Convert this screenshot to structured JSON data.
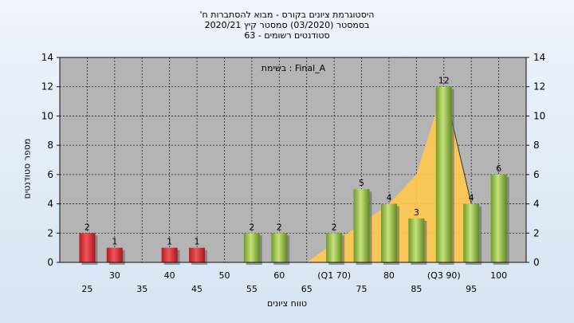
{
  "title_lines": [
    "'היסטוגרמת ציונים בקורס - מבוא להסתברות ח",
    "בסמסטר  (03/2020)  סמסטר קיץ  2020/21",
    "סטודנטים רשומים - 63"
  ],
  "colors": {
    "plot_background": "#b4b4b4",
    "red_bar": "#d9363b",
    "green_bar": "#9fc84a",
    "area_fill": "#ffc94d"
  },
  "chart_data": {
    "type": "bar",
    "annotation": "בשימת : Final_A",
    "xlabel": "טווח ציונים",
    "ylabel": "מספר סטודנטים",
    "ylim": [
      0,
      14
    ],
    "yticks": [
      0,
      2,
      4,
      6,
      8,
      10,
      12,
      14
    ],
    "grid": true,
    "xlim": [
      20,
      105
    ],
    "x_tick_labels_row1": [
      {
        "x": 30,
        "label": "30"
      },
      {
        "x": 40,
        "label": "40"
      },
      {
        "x": 50,
        "label": "50"
      },
      {
        "x": 60,
        "label": "60"
      },
      {
        "x": 70,
        "label": "(Q1 70)"
      },
      {
        "x": 80,
        "label": "80"
      },
      {
        "x": 90,
        "label": "(Q3 90)"
      },
      {
        "x": 100,
        "label": "100"
      }
    ],
    "x_tick_labels_row2": [
      {
        "x": 25,
        "label": "25"
      },
      {
        "x": 35,
        "label": "35"
      },
      {
        "x": 45,
        "label": "45"
      },
      {
        "x": 55,
        "label": "55"
      },
      {
        "x": 65,
        "label": "65"
      },
      {
        "x": 75,
        "label": "75"
      },
      {
        "x": 85,
        "label": "85"
      },
      {
        "x": 95,
        "label": "95"
      }
    ],
    "bars": [
      {
        "x": 25,
        "value": 2,
        "color": "red"
      },
      {
        "x": 30,
        "value": 1,
        "color": "red"
      },
      {
        "x": 40,
        "value": 1,
        "color": "red"
      },
      {
        "x": 45,
        "value": 1,
        "color": "red"
      },
      {
        "x": 55,
        "value": 2,
        "color": "green"
      },
      {
        "x": 60,
        "value": 2,
        "color": "green"
      },
      {
        "x": 70,
        "value": 2,
        "color": "green"
      },
      {
        "x": 75,
        "value": 5,
        "color": "green"
      },
      {
        "x": 80,
        "value": 4,
        "color": "green"
      },
      {
        "x": 85,
        "value": 3,
        "color": "green"
      },
      {
        "x": 90,
        "value": 12,
        "color": "green"
      },
      {
        "x": 95,
        "value": 4,
        "color": "green"
      },
      {
        "x": 100,
        "value": 6,
        "color": "green"
      }
    ],
    "area": [
      {
        "x": 65,
        "y": 0
      },
      {
        "x": 80,
        "y": 4
      },
      {
        "x": 85,
        "y": 6
      },
      {
        "x": 90,
        "y": 12
      },
      {
        "x": 95,
        "y": 4
      },
      {
        "x": 95,
        "y": 0
      }
    ],
    "area_gray": [
      {
        "x": 65,
        "y": 0
      },
      {
        "x": 70,
        "y": 1
      },
      {
        "x": 70,
        "y": 0
      }
    ]
  }
}
